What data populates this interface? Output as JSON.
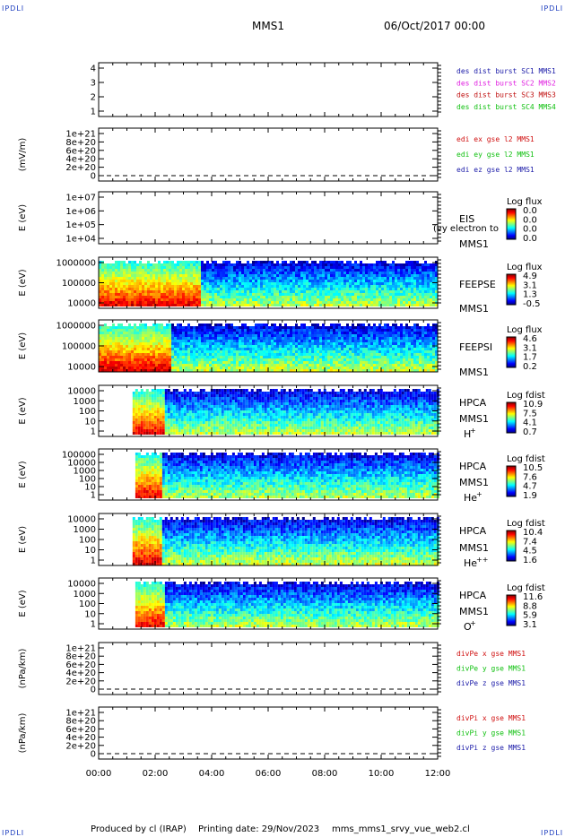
{
  "corner_label": "IPDLI",
  "header": {
    "title": "MMS1",
    "datetime": "06/Oct/2017 00:00"
  },
  "footer": {
    "produced_by": "Produced by cl (IRAP)",
    "printing_date": "Printing date: 29/Nov/2023",
    "script": "mms_mms1_srvy_vue_web2.cl"
  },
  "chart_data": {
    "type": "spectrogram-stack",
    "x_ticks": [
      "00:00",
      "02:00",
      "04:00",
      "06:00",
      "08:00",
      "10:00",
      "12:00"
    ],
    "x_range_hours": [
      0,
      12
    ],
    "colors": {
      "mms1": "#1a1aa8",
      "mms2": "#e020e0",
      "mms3": "#c01010",
      "mms4": "#10c010",
      "x": "#d01010",
      "y": "#10c010",
      "z": "#1a1aa8"
    },
    "panels": [
      {
        "id": "des-dist",
        "ylabel": "",
        "y_ticks": [
          "4",
          "3",
          "2",
          "1"
        ],
        "legend": [
          {
            "text": "des dist burst SC1 MMS1",
            "color": "#1a1aa8"
          },
          {
            "text": "des dist burst SC2 MMS2",
            "color": "#e020e0"
          },
          {
            "text": "des dist burst SC3 MMS3",
            "color": "#c01010"
          },
          {
            "text": "des dist burst SC4 MMS4",
            "color": "#10c010"
          }
        ]
      },
      {
        "id": "edi",
        "ylabel": "(mV/m)",
        "y_ticks": [
          "1e+21",
          "8e+20",
          "6e+20",
          "4e+20",
          "2e+20",
          "0"
        ],
        "legend": [
          {
            "text": "edi ex gse l2 MMS1",
            "color": "#d01010"
          },
          {
            "text": "edi ey gse l2 MMS1",
            "color": "#10c010"
          },
          {
            "text": "edi ez gse l2 MMS1",
            "color": "#1a1aa8"
          }
        ]
      },
      {
        "id": "eis",
        "ylabel": "E (eV)",
        "y_ticks": [
          "1e+07",
          "1e+06",
          "1e+05",
          "1e+04"
        ],
        "instrument": "EIS",
        "spacecraft": "MMS1",
        "overlay_text": "(vy electron to",
        "cbar_title": "Log flux",
        "cbar_ticks": [
          "0.0",
          "0.0",
          "0.0",
          "0.0"
        ]
      },
      {
        "id": "feepse",
        "ylabel": "E (eV)",
        "y_ticks": [
          "1000000",
          "100000",
          "10000"
        ],
        "instrument": "FEEPSE",
        "spacecraft": "MMS1",
        "cbar_title": "Log flux",
        "cbar_ticks": [
          "4.9",
          "3.1",
          "1.3",
          "-0.5"
        ],
        "spectrum": {
          "start_h": 0,
          "end_h": 12,
          "high_until_h": 3.6
        }
      },
      {
        "id": "feepsi",
        "ylabel": "E (eV)",
        "y_ticks": [
          "1000000",
          "100000",
          "10000"
        ],
        "instrument": "FEEPSI",
        "spacecraft": "MMS1",
        "cbar_title": "Log flux",
        "cbar_ticks": [
          "4.6",
          "3.1",
          "1.7",
          "0.2"
        ],
        "spectrum": {
          "start_h": 0,
          "end_h": 12,
          "high_until_h": 2.5
        }
      },
      {
        "id": "hpca-h",
        "ylabel": "E (eV)",
        "y_ticks": [
          "10000",
          "1000",
          "100",
          "10",
          "1"
        ],
        "instrument": "HPCA",
        "spacecraft": "MMS1",
        "species": "H",
        "species_sup": "+",
        "cbar_title": "Log fdist",
        "cbar_ticks": [
          "10.9",
          "7.5",
          "4.1",
          "0.7"
        ],
        "spectrum": {
          "start_h": 1.2,
          "end_h": 12,
          "high_until_h": 2.3
        }
      },
      {
        "id": "hpca-he",
        "ylabel": "E (eV)",
        "y_ticks": [
          "100000",
          "10000",
          "1000",
          "100",
          "10",
          "1"
        ],
        "instrument": "HPCA",
        "spacecraft": "MMS1",
        "species": "He",
        "species_sup": "+",
        "cbar_title": "Log fdist",
        "cbar_ticks": [
          "10.5",
          "7.6",
          "4.7",
          "1.9"
        ],
        "spectrum": {
          "start_h": 1.3,
          "end_h": 12,
          "high_until_h": 2.2
        }
      },
      {
        "id": "hpca-hepp",
        "ylabel": "E (eV)",
        "y_ticks": [
          "10000",
          "1000",
          "100",
          "10",
          "1"
        ],
        "instrument": "HPCA",
        "spacecraft": "MMS1",
        "species": "He",
        "species_sup": "++",
        "cbar_title": "Log fdist",
        "cbar_ticks": [
          "10.4",
          "7.4",
          "4.5",
          "1.6"
        ],
        "spectrum": {
          "start_h": 1.2,
          "end_h": 12,
          "high_until_h": 2.2
        }
      },
      {
        "id": "hpca-o",
        "ylabel": "E (eV)",
        "y_ticks": [
          "10000",
          "1000",
          "100",
          "10",
          "1"
        ],
        "instrument": "HPCA",
        "spacecraft": "MMS1",
        "species": "O",
        "species_sup": "+",
        "cbar_title": "Log fdist",
        "cbar_ticks": [
          "11.6",
          "8.8",
          "5.9",
          "3.1"
        ],
        "spectrum": {
          "start_h": 1.3,
          "end_h": 12,
          "high_until_h": 2.3
        }
      },
      {
        "id": "divpe",
        "ylabel": "(nPa/km)",
        "y_ticks": [
          "1e+21",
          "8e+20",
          "6e+20",
          "4e+20",
          "2e+20",
          "0"
        ],
        "legend": [
          {
            "text": "divPe x gse MMS1",
            "color": "#d01010"
          },
          {
            "text": "divPe y gse MMS1",
            "color": "#10c010"
          },
          {
            "text": "divPe z gse MMS1",
            "color": "#1a1aa8"
          }
        ]
      },
      {
        "id": "divpi",
        "ylabel": "(nPa/km)",
        "y_ticks": [
          "1e+21",
          "8e+20",
          "6e+20",
          "4e+20",
          "2e+20",
          "0"
        ],
        "legend": [
          {
            "text": "divPi x gse MMS1",
            "color": "#d01010"
          },
          {
            "text": "divPi y gse MMS1",
            "color": "#10c010"
          },
          {
            "text": "divPi z gse MMS1",
            "color": "#1a1aa8"
          }
        ]
      }
    ]
  }
}
